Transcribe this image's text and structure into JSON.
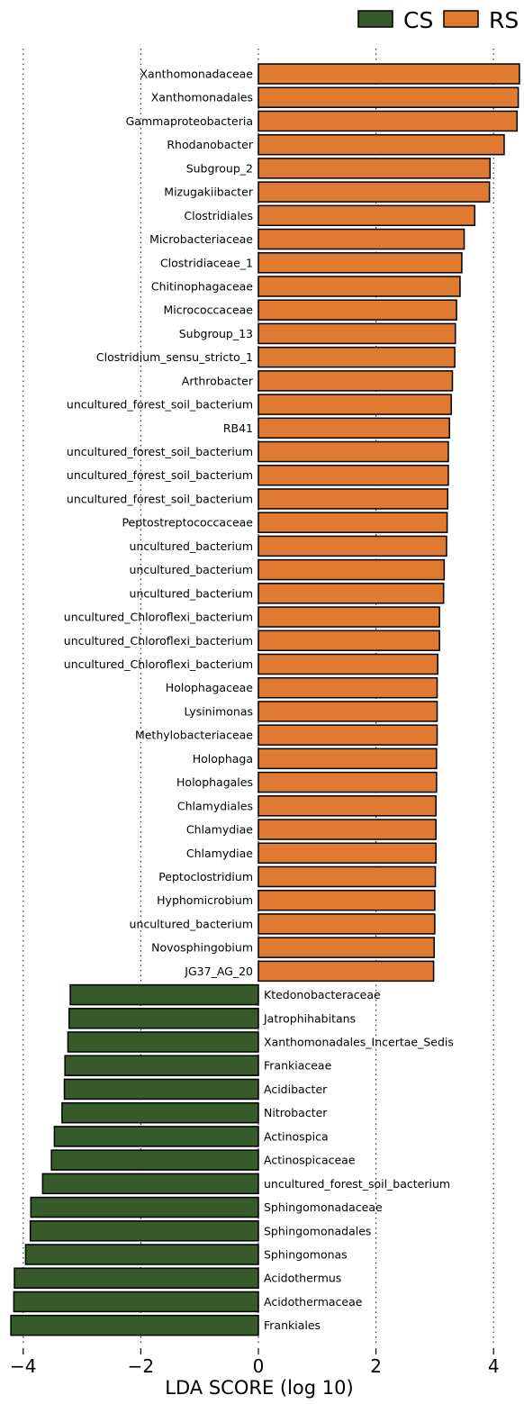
{
  "chart_data": {
    "type": "bar",
    "orientation": "horizontal",
    "xlabel": "LDA SCORE (log 10)",
    "xlim": [
      -4.3,
      4.5
    ],
    "xticks": [
      -4,
      -2,
      0,
      2,
      4
    ],
    "xtick_labels": [
      "−4",
      "−2",
      "0",
      "2",
      "4"
    ],
    "grid": "vertical dotted lines at ticks",
    "legend_position": "top-right",
    "series": [
      {
        "name": "CS",
        "color": "#375a2a"
      },
      {
        "name": "RS",
        "color": "#e07a30"
      }
    ],
    "bars": [
      {
        "label": "Xanthomonadaceae",
        "group": "RS",
        "value": 4.44
      },
      {
        "label": "Xanthomonadales",
        "group": "RS",
        "value": 4.42
      },
      {
        "label": "Gammaproteobacteria",
        "group": "RS",
        "value": 4.4
      },
      {
        "label": "Rhodanobacter",
        "group": "RS",
        "value": 4.18
      },
      {
        "label": "Subgroup_2",
        "group": "RS",
        "value": 3.94
      },
      {
        "label": "Mizugakiibacter",
        "group": "RS",
        "value": 3.93
      },
      {
        "label": "Clostridiales",
        "group": "RS",
        "value": 3.68
      },
      {
        "label": "Microbacteriaceae",
        "group": "RS",
        "value": 3.5
      },
      {
        "label": "Clostridiaceae_1",
        "group": "RS",
        "value": 3.46
      },
      {
        "label": "Chitinophagaceae",
        "group": "RS",
        "value": 3.43
      },
      {
        "label": "Micrococcaceae",
        "group": "RS",
        "value": 3.37
      },
      {
        "label": "Subgroup_13",
        "group": "RS",
        "value": 3.35
      },
      {
        "label": "Clostridium_sensu_stricto_1",
        "group": "RS",
        "value": 3.34
      },
      {
        "label": "Arthrobacter",
        "group": "RS",
        "value": 3.3
      },
      {
        "label": "uncultured_forest_soil_bacterium",
        "group": "RS",
        "value": 3.28
      },
      {
        "label": "RB41",
        "group": "RS",
        "value": 3.25
      },
      {
        "label": "uncultured_forest_soil_bacterium",
        "group": "RS",
        "value": 3.23
      },
      {
        "label": "uncultured_forest_soil_bacterium",
        "group": "RS",
        "value": 3.23
      },
      {
        "label": "uncultured_forest_soil_bacterium",
        "group": "RS",
        "value": 3.22
      },
      {
        "label": "Peptostreptococcaceae",
        "group": "RS",
        "value": 3.21
      },
      {
        "label": "uncultured_bacterium",
        "group": "RS",
        "value": 3.2
      },
      {
        "label": "uncultured_bacterium",
        "group": "RS",
        "value": 3.16
      },
      {
        "label": "uncultured_bacterium",
        "group": "RS",
        "value": 3.15
      },
      {
        "label": "uncultured_Chloroflexi_bacterium",
        "group": "RS",
        "value": 3.08
      },
      {
        "label": "uncultured_Chloroflexi_bacterium",
        "group": "RS",
        "value": 3.08
      },
      {
        "label": "uncultured_Chloroflexi_bacterium",
        "group": "RS",
        "value": 3.05
      },
      {
        "label": "Holophagaceae",
        "group": "RS",
        "value": 3.04
      },
      {
        "label": "Lysinimonas",
        "group": "RS",
        "value": 3.04
      },
      {
        "label": "Methylobacteriaceae",
        "group": "RS",
        "value": 3.04
      },
      {
        "label": "Holophaga",
        "group": "RS",
        "value": 3.03
      },
      {
        "label": "Holophagales",
        "group": "RS",
        "value": 3.03
      },
      {
        "label": "Chlamydiales",
        "group": "RS",
        "value": 3.02
      },
      {
        "label": "Chlamydiae",
        "group": "RS",
        "value": 3.02
      },
      {
        "label": "Chlamydiae",
        "group": "RS",
        "value": 3.02
      },
      {
        "label": "Peptoclostridium",
        "group": "RS",
        "value": 3.01
      },
      {
        "label": "Hyphomicrobium",
        "group": "RS",
        "value": 3.0
      },
      {
        "label": "uncultured_bacterium",
        "group": "RS",
        "value": 3.0
      },
      {
        "label": "Novosphingobium",
        "group": "RS",
        "value": 2.99
      },
      {
        "label": "JG37_AG_20",
        "group": "RS",
        "value": 2.98
      },
      {
        "label": "Ktedonobacteraceae",
        "group": "CS",
        "value": -3.2
      },
      {
        "label": "Jatrophihabitans",
        "group": "CS",
        "value": -3.22
      },
      {
        "label": "Xanthomonadales_Incertae_Sedis",
        "group": "CS",
        "value": -3.24
      },
      {
        "label": "Frankiaceae",
        "group": "CS",
        "value": -3.29
      },
      {
        "label": "Acidibacter",
        "group": "CS",
        "value": -3.3
      },
      {
        "label": "Nitrobacter",
        "group": "CS",
        "value": -3.34
      },
      {
        "label": "Actinospica",
        "group": "CS",
        "value": -3.47
      },
      {
        "label": "Actinospicaceae",
        "group": "CS",
        "value": -3.52
      },
      {
        "label": "uncultured_forest_soil_bacterium",
        "group": "CS",
        "value": -3.67
      },
      {
        "label": "Sphingomonadaceae",
        "group": "CS",
        "value": -3.87
      },
      {
        "label": "Sphingomonadales",
        "group": "CS",
        "value": -3.88
      },
      {
        "label": "Sphingomonas",
        "group": "CS",
        "value": -3.96
      },
      {
        "label": "Acidothermus",
        "group": "CS",
        "value": -4.15
      },
      {
        "label": "Acidothermaceae",
        "group": "CS",
        "value": -4.16
      },
      {
        "label": "Frankiales",
        "group": "CS",
        "value": -4.21
      }
    ]
  }
}
